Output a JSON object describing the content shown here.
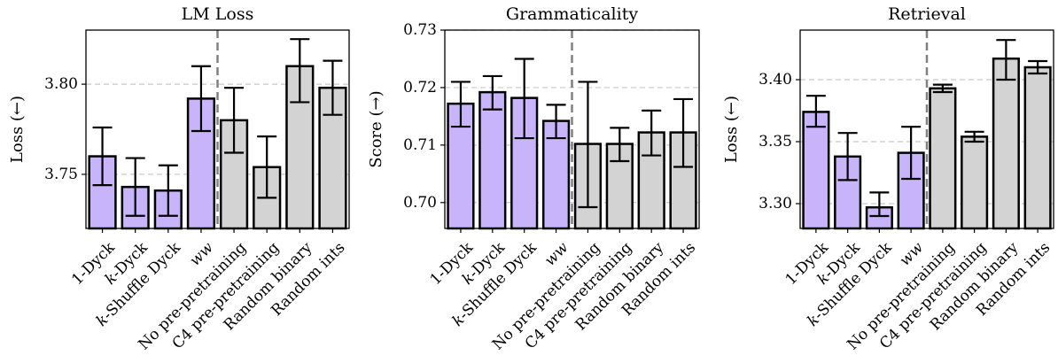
{
  "colors": {
    "synthetic": "#c8b4fa",
    "baseline": "#d3d3d3",
    "edge": "#000000",
    "grid": "#c8c8c8",
    "divider": "#808080"
  },
  "chart_data": [
    {
      "type": "bar",
      "title": "LM Loss",
      "ylabel": "Loss (←)",
      "ylim": [
        3.72,
        3.83
      ],
      "yticks": [
        3.75,
        3.8
      ],
      "ytick_labels": [
        "3.75",
        "3.80"
      ],
      "grid": true,
      "divider_after_index": 3,
      "categories": [
        "1-Dyck",
        "k-Dyck",
        "k-Shuffle Dyck",
        "ww",
        "No pre-pretraining",
        "C4 pre-pretraining",
        "Random binary",
        "Random ints"
      ],
      "values": [
        3.76,
        3.743,
        3.741,
        3.792,
        3.78,
        3.754,
        3.81,
        3.798
      ],
      "err_low": [
        3.744,
        3.727,
        3.727,
        3.774,
        3.762,
        3.737,
        3.79,
        3.783
      ],
      "err_high": [
        3.776,
        3.759,
        3.755,
        3.81,
        3.798,
        3.771,
        3.825,
        3.813
      ],
      "groups": [
        "synthetic",
        "synthetic",
        "synthetic",
        "synthetic",
        "baseline",
        "baseline",
        "baseline",
        "baseline"
      ]
    },
    {
      "type": "bar",
      "title": "Grammaticality",
      "ylabel": "Score (→)",
      "ylim": [
        0.6955,
        0.73
      ],
      "yticks": [
        0.7,
        0.71,
        0.72,
        0.73
      ],
      "ytick_labels": [
        "0.70",
        "0.71",
        "0.72",
        "0.73"
      ],
      "grid": true,
      "divider_after_index": 3,
      "categories": [
        "1-Dyck",
        "k-Dyck",
        "k-Shuffle Dyck",
        "ww",
        "No pre-pretraining",
        "C4 pre-pretraining",
        "Random binary",
        "Random ints"
      ],
      "values": [
        0.7172,
        0.7192,
        0.7182,
        0.7142,
        0.7102,
        0.7102,
        0.7122,
        0.7122
      ],
      "err_low": [
        0.7132,
        0.7162,
        0.7112,
        0.7112,
        0.6992,
        0.7072,
        0.7082,
        0.7062
      ],
      "err_high": [
        0.721,
        0.722,
        0.725,
        0.717,
        0.721,
        0.713,
        0.716,
        0.718
      ],
      "groups": [
        "synthetic",
        "synthetic",
        "synthetic",
        "synthetic",
        "baseline",
        "baseline",
        "baseline",
        "baseline"
      ]
    },
    {
      "type": "bar",
      "title": "Retrieval",
      "ylabel": "Loss (←)",
      "ylim": [
        3.28,
        3.44
      ],
      "yticks": [
        3.3,
        3.35,
        3.4
      ],
      "ytick_labels": [
        "3.30",
        "3.35",
        "3.40"
      ],
      "grid": true,
      "divider_after_index": 3,
      "categories": [
        "1-Dyck",
        "k-Dyck",
        "k-Shuffle Dyck",
        "ww",
        "No pre-pretraining",
        "C4 pre-pretraining",
        "Random binary",
        "Random ints"
      ],
      "values": [
        3.374,
        3.338,
        3.297,
        3.341,
        3.393,
        3.354,
        3.417,
        3.41
      ],
      "err_low": [
        3.362,
        3.319,
        3.29,
        3.32,
        3.39,
        3.35,
        3.4,
        3.405
      ],
      "err_high": [
        3.387,
        3.357,
        3.309,
        3.362,
        3.396,
        3.358,
        3.432,
        3.415
      ],
      "groups": [
        "synthetic",
        "synthetic",
        "synthetic",
        "synthetic",
        "baseline",
        "baseline",
        "baseline",
        "baseline"
      ]
    }
  ]
}
